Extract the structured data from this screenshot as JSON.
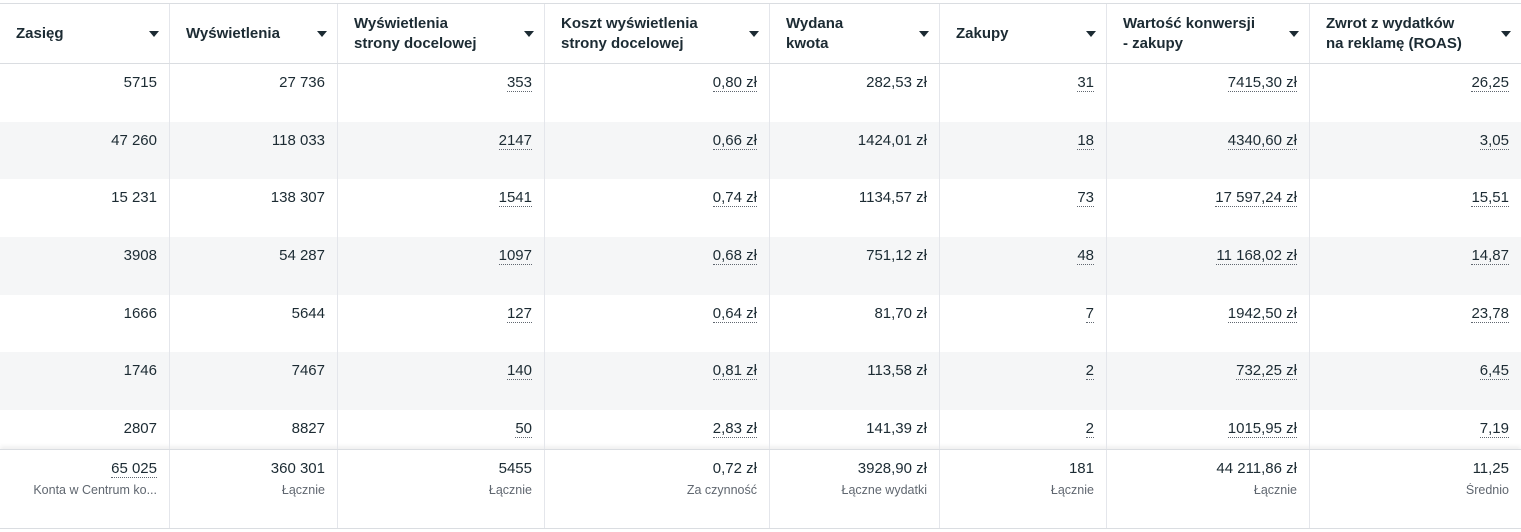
{
  "columns": [
    {
      "label": "Zasięg"
    },
    {
      "label": "Wyświetlenia"
    },
    {
      "label": "Wyświetlenia\nstrony docelowej"
    },
    {
      "label": "Koszt wyświetlenia\nstrony docelowej"
    },
    {
      "label": "Wydana\nkwota"
    },
    {
      "label": "Zakupy"
    },
    {
      "label": "Wartość konwersji\n- zakupy"
    },
    {
      "label": "Zwrot z wydatków\nna reklamę (ROAS)"
    }
  ],
  "rows": [
    [
      "5715",
      "27 736",
      "353",
      "0,80 zł",
      "282,53 zł",
      "31",
      "7415,30 zł",
      "26,25"
    ],
    [
      "47 260",
      "118 033",
      "2147",
      "0,66 zł",
      "1424,01 zł",
      "18",
      "4340,60 zł",
      "3,05"
    ],
    [
      "15 231",
      "138 307",
      "1541",
      "0,74 zł",
      "1134,57 zł",
      "73",
      "17 597,24 zł",
      "15,51"
    ],
    [
      "3908",
      "54 287",
      "1097",
      "0,68 zł",
      "751,12 zł",
      "48",
      "11 168,02 zł",
      "14,87"
    ],
    [
      "1666",
      "5644",
      "127",
      "0,64 zł",
      "81,70 zł",
      "7",
      "1942,50 zł",
      "23,78"
    ],
    [
      "1746",
      "7467",
      "140",
      "0,81 zł",
      "113,58 zł",
      "2",
      "732,25 zł",
      "6,45"
    ],
    [
      "2807",
      "8827",
      "50",
      "2,83 zł",
      "141,39 zł",
      "2",
      "1015,95 zł",
      "7,19"
    ]
  ],
  "totals": [
    {
      "value": "65 025",
      "label": "Konta w Centrum ko..."
    },
    {
      "value": "360 301",
      "label": "Łącznie"
    },
    {
      "value": "5455",
      "label": "Łącznie"
    },
    {
      "value": "0,72 zł",
      "label": "Za czynność"
    },
    {
      "value": "3928,90 zł",
      "label": "Łączne wydatki"
    },
    {
      "value": "181",
      "label": "Łącznie"
    },
    {
      "value": "44 211,86 zł",
      "label": "Łącznie"
    },
    {
      "value": "11,25",
      "label": "Średnio"
    }
  ]
}
